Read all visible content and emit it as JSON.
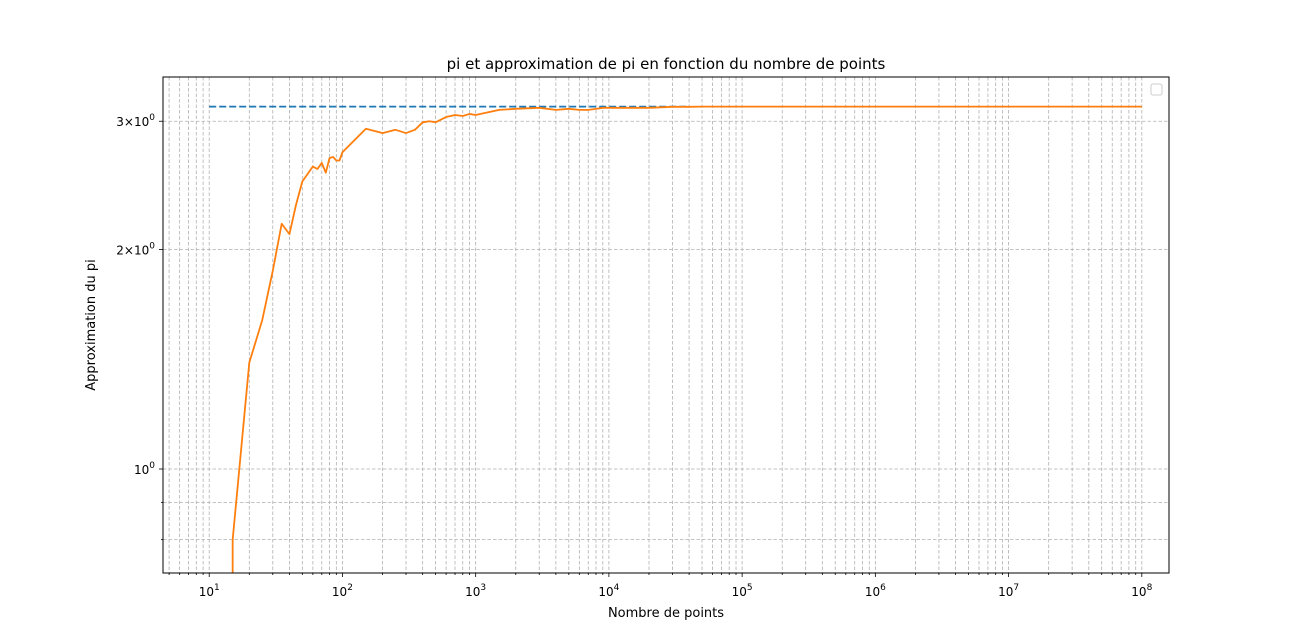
{
  "chart_data": {
    "type": "line",
    "title": "pi et approximation de pi en fonction du nombre de points",
    "xlabel": "Nombre de points",
    "ylabel": "Approximation du pi",
    "xscale": "log",
    "yscale": "log",
    "xlim": [
      4.5,
      160000000
    ],
    "ylim": [
      0.72,
      3.45
    ],
    "grid": "both (major and minor, dashed)",
    "legend": "empty legend box, top-right",
    "x_ticks": [
      {
        "value": 10,
        "base": "10",
        "exp": "1"
      },
      {
        "value": 100,
        "base": "10",
        "exp": "2"
      },
      {
        "value": 1000,
        "base": "10",
        "exp": "3"
      },
      {
        "value": 10000,
        "base": "10",
        "exp": "4"
      },
      {
        "value": 100000,
        "base": "10",
        "exp": "5"
      },
      {
        "value": 1000000,
        "base": "10",
        "exp": "6"
      },
      {
        "value": 10000000,
        "base": "10",
        "exp": "7"
      },
      {
        "value": 100000000,
        "base": "10",
        "exp": "8"
      }
    ],
    "y_ticks": [
      {
        "value": 1,
        "base": "10",
        "exp": "0",
        "mult": ""
      },
      {
        "value": 2,
        "base": "10",
        "exp": "0",
        "mult": "2×"
      },
      {
        "value": 3,
        "base": "10",
        "exp": "0",
        "mult": "3×"
      }
    ],
    "colors": {
      "pi": "#1f77b4",
      "approx": "#ff7f0e",
      "grid": "#b0b0b0"
    },
    "series": [
      {
        "color": "#1f77b4",
        "style": "dashed",
        "x": [
          10,
          40000
        ],
        "y": [
          3.14159,
          3.14159
        ]
      },
      {
        "color": "#ff7f0e",
        "style": "solid",
        "x": [
          15,
          15,
          20,
          25,
          30,
          35,
          40,
          45,
          50,
          60,
          65,
          70,
          75,
          80,
          85,
          90,
          95,
          100,
          150,
          200,
          250,
          300,
          350,
          400,
          450,
          500,
          600,
          700,
          800,
          900,
          1000,
          1500,
          2000,
          3000,
          4000,
          5000,
          6000,
          7000,
          8000,
          9000,
          10000,
          20000,
          30000,
          40000,
          50000,
          100000,
          1000000,
          10000000,
          100000000
        ],
        "y": [
          0.72,
          0.8,
          1.4,
          1.6,
          1.87,
          2.17,
          2.1,
          2.31,
          2.48,
          2.6,
          2.58,
          2.63,
          2.55,
          2.67,
          2.68,
          2.65,
          2.65,
          2.72,
          2.93,
          2.89,
          2.92,
          2.89,
          2.92,
          2.99,
          3.0,
          2.99,
          3.04,
          3.06,
          3.05,
          3.07,
          3.06,
          3.11,
          3.12,
          3.13,
          3.11,
          3.12,
          3.11,
          3.11,
          3.12,
          3.13,
          3.13,
          3.13,
          3.14,
          3.14,
          3.142,
          3.142,
          3.1415,
          3.1416,
          3.1416
        ]
      }
    ]
  }
}
